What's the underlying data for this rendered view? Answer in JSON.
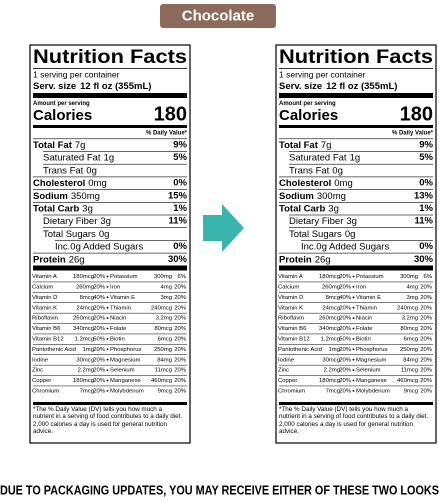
{
  "header": {
    "flavor": "Chocolate"
  },
  "labels": [
    {
      "title": "Nutrition Facts",
      "servings": "1 serving per container",
      "serving_size_label": "Serv. size",
      "serving_size": "12 fl oz (355mL)",
      "amount_per_serving": "Amount per serving",
      "calories_label": "Calories",
      "calories": "180",
      "dv_header": "% Daily Value*",
      "nutrients": [
        {
          "name": "Total Fat",
          "amount": "7g",
          "dv": "9%"
        },
        {
          "name": "Saturated Fat",
          "amount": "1g",
          "dv": "5%"
        },
        {
          "name": "Trans Fat",
          "amount": "0g"
        },
        {
          "name": "Cholesterol",
          "amount": "0mg",
          "dv": "0%"
        },
        {
          "name": "Sodium",
          "amount": "350mg",
          "dv": "15%"
        },
        {
          "name": "Total Carb",
          "amount": "3g",
          "dv": "1%"
        },
        {
          "name": "Dietary Fiber",
          "amount": "3g",
          "dv": "11%"
        },
        {
          "name": "Total Sugars",
          "amount": "0g"
        },
        {
          "name": "Inc.0g Added Sugars",
          "amount": "",
          "dv": "0%"
        },
        {
          "name": "Protein",
          "amount": "26g",
          "dv": "30%"
        }
      ],
      "vitamins": [
        [
          {
            "name": "Vitamin A",
            "amount": "180mcg",
            "dv": "20%"
          },
          {
            "name": "Potassium",
            "amount": "300mg",
            "dv": "6%"
          }
        ],
        [
          {
            "name": "Calcium",
            "amount": "260mg",
            "dv": "20%"
          },
          {
            "name": "Iron",
            "amount": "4mg",
            "dv": "20%"
          }
        ],
        [
          {
            "name": "Vitamin D",
            "amount": "8mcg",
            "dv": "40%"
          },
          {
            "name": "Vitamin E",
            "amount": "3mg",
            "dv": "20%"
          }
        ],
        [
          {
            "name": "Vitamin K",
            "amount": "24mcg",
            "dv": "20%"
          },
          {
            "name": "Thiamin",
            "amount": "240mcg",
            "dv": "20%"
          }
        ],
        [
          {
            "name": "Riboflavin",
            "amount": "260mcg",
            "dv": "20%"
          },
          {
            "name": "Niacin",
            "amount": "3.2mg",
            "dv": "20%"
          }
        ],
        [
          {
            "name": "Vitamin B6",
            "amount": "340mcg",
            "dv": "20%"
          },
          {
            "name": "Folate",
            "amount": "80mcg",
            "dv": "20%"
          }
        ],
        [
          {
            "name": "Vitamin B12",
            "amount": "1.2mcg",
            "dv": "50%"
          },
          {
            "name": "Biotin",
            "amount": "6mcg",
            "dv": "20%"
          }
        ],
        [
          {
            "name": "Pantothenic Acid",
            "amount": "1mg",
            "dv": "20%"
          },
          {
            "name": "Phosphorus",
            "amount": "250mg",
            "dv": "20%"
          }
        ],
        [
          {
            "name": "Iodine",
            "amount": "30mcg",
            "dv": "20%"
          },
          {
            "name": "Magnesium",
            "amount": "84mg",
            "dv": "20%"
          }
        ],
        [
          {
            "name": "Zinc",
            "amount": "2.2mg",
            "dv": "20%"
          },
          {
            "name": "Selenium",
            "amount": "11mcg",
            "dv": "20%"
          }
        ],
        [
          {
            "name": "Copper",
            "amount": "180mcg",
            "dv": "20%"
          },
          {
            "name": "Manganese",
            "amount": "460mcg",
            "dv": "20%"
          }
        ],
        [
          {
            "name": "Chromium",
            "amount": "7mcg",
            "dv": "20%"
          },
          {
            "name": "Molybdenum",
            "amount": "9mcg",
            "dv": "20%"
          }
        ]
      ],
      "footnote": "*The % Daily Value (DV) tells you how much a nutrient in a serving of food contributes to a daily diet. 2,000 calories a day is used for general nutrition advice."
    },
    {
      "title": "Nutrition Facts",
      "servings": "1 serving per container",
      "serving_size_label": "Serv. size",
      "serving_size": "12 fl oz (355mL)",
      "amount_per_serving": "Amount per serving",
      "calories_label": "Calories",
      "calories": "180",
      "dv_header": "% Daily Value*",
      "nutrients": [
        {
          "name": "Total Fat",
          "amount": "7g",
          "dv": "9%"
        },
        {
          "name": "Saturated Fat",
          "amount": "1g",
          "dv": "5%"
        },
        {
          "name": "Trans Fat",
          "amount": "0g"
        },
        {
          "name": "Cholesterol",
          "amount": "0mg",
          "dv": "0%"
        },
        {
          "name": "Sodium",
          "amount": "300mg",
          "dv": "13%"
        },
        {
          "name": "Total Carb",
          "amount": "3g",
          "dv": "1%"
        },
        {
          "name": "Dietary Fiber",
          "amount": "3g",
          "dv": "11%"
        },
        {
          "name": "Total Sugars",
          "amount": "0g"
        },
        {
          "name": "Inc.0g Added Sugars",
          "amount": "",
          "dv": "0%"
        },
        {
          "name": "Protein",
          "amount": "26g",
          "dv": "30%"
        }
      ],
      "vitamins": [
        [
          {
            "name": "Vitamin A",
            "amount": "180mcg",
            "dv": "20%"
          },
          {
            "name": "Potassium",
            "amount": "300mg",
            "dv": "6%"
          }
        ],
        [
          {
            "name": "Calcium",
            "amount": "260mg",
            "dv": "20%"
          },
          {
            "name": "Iron",
            "amount": "4mg",
            "dv": "20%"
          }
        ],
        [
          {
            "name": "Vitamin D",
            "amount": "8mcg",
            "dv": "40%"
          },
          {
            "name": "Vitamin E",
            "amount": "3mg",
            "dv": "20%"
          }
        ],
        [
          {
            "name": "Vitamin K",
            "amount": "24mcg",
            "dv": "20%"
          },
          {
            "name": "Thiamin",
            "amount": "240mcg",
            "dv": "20%"
          }
        ],
        [
          {
            "name": "Riboflavin",
            "amount": "260mcg",
            "dv": "20%"
          },
          {
            "name": "Niacin",
            "amount": "3.2mg",
            "dv": "20%"
          }
        ],
        [
          {
            "name": "Vitamin B6",
            "amount": "340mcg",
            "dv": "20%"
          },
          {
            "name": "Folate",
            "amount": "80mcg",
            "dv": "20%"
          }
        ],
        [
          {
            "name": "Vitamin B12",
            "amount": "1.2mcg",
            "dv": "50%"
          },
          {
            "name": "Biotin",
            "amount": "6mcg",
            "dv": "20%"
          }
        ],
        [
          {
            "name": "Pantothenic Acid",
            "amount": "1mg",
            "dv": "20%"
          },
          {
            "name": "Phosphorus",
            "amount": "250mg",
            "dv": "20%"
          }
        ],
        [
          {
            "name": "Iodine",
            "amount": "30mcg",
            "dv": "20%"
          },
          {
            "name": "Magnesium",
            "amount": "84mg",
            "dv": "20%"
          }
        ],
        [
          {
            "name": "Zinc",
            "amount": "2.2mg",
            "dv": "20%"
          },
          {
            "name": "Selenium",
            "amount": "11mcg",
            "dv": "20%"
          }
        ],
        [
          {
            "name": "Copper",
            "amount": "180mcg",
            "dv": "20%"
          },
          {
            "name": "Manganese",
            "amount": "460mcg",
            "dv": "20%"
          }
        ],
        [
          {
            "name": "Chromium",
            "amount": "7mcg",
            "dv": "20%"
          },
          {
            "name": "Molybdenum",
            "amount": "9mcg",
            "dv": "20%"
          }
        ]
      ],
      "footnote": "*The % Daily Value (DV) tells you how much a nutrient in a serving of food contributes to a daily diet. 2,000 calories a day is used for general nutrition advice."
    }
  ],
  "footer": {
    "notice": "DUE TO PACKAGING UPDATES, YOU MAY RECEIVE EITHER OF THESE TWO LOOKS"
  }
}
